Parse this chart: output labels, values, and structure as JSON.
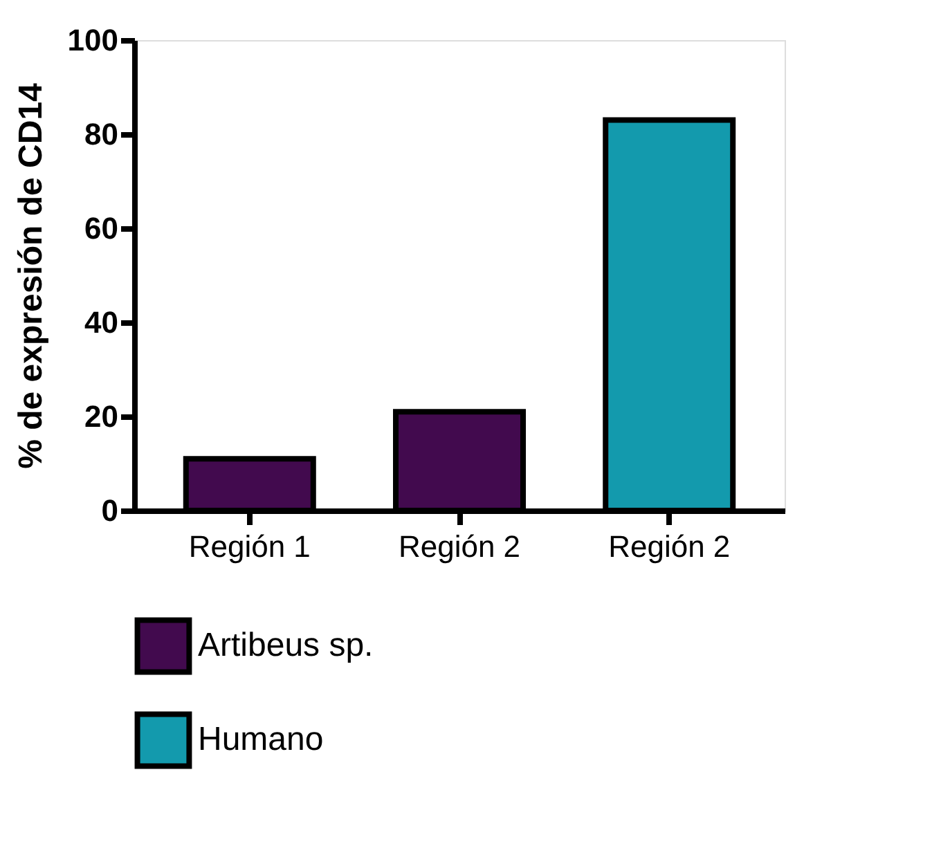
{
  "chart_data": {
    "type": "bar",
    "ylabel": "% de expresión de CD14",
    "categories": [
      "Región 1",
      "Región 2",
      "Región 2"
    ],
    "series": [
      {
        "name": "Artibeus sp.",
        "color": "#420a4e",
        "values": [
          11,
          21,
          null
        ]
      },
      {
        "name": "Humano",
        "color": "#139aad",
        "values": [
          null,
          null,
          83
        ]
      }
    ],
    "ylim": [
      0,
      100
    ],
    "yticks": [
      0,
      20,
      40,
      60,
      80,
      100
    ],
    "grid": false,
    "legend": "bottom left"
  }
}
